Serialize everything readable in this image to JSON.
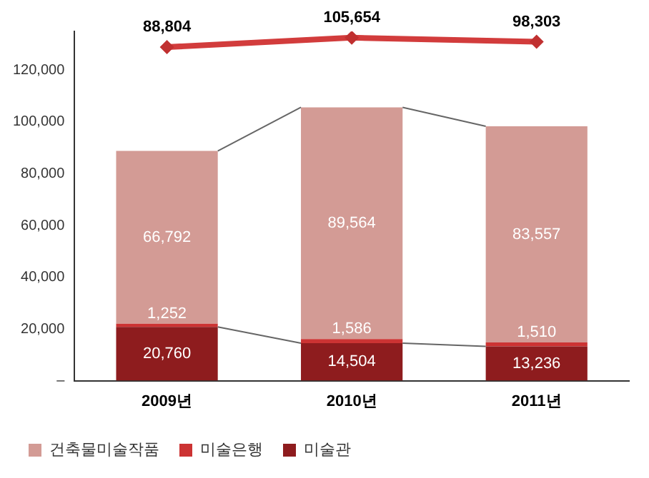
{
  "chart_data": {
    "type": "bar",
    "stacked": true,
    "categories": [
      "2009년",
      "2010년",
      "2011년"
    ],
    "series": [
      {
        "name": "미술관",
        "color": "#8e1c1e",
        "values": [
          20760,
          14504,
          13236
        ],
        "value_labels": [
          "20,760",
          "14,504",
          "13,236"
        ]
      },
      {
        "name": "미술은행",
        "color": "#cc3333",
        "values": [
          1252,
          1586,
          1510
        ],
        "value_labels": [
          "1,252",
          "1,586",
          "1,510"
        ]
      },
      {
        "name": "건축물미술작품",
        "color": "#d39b95",
        "values": [
          66792,
          89564,
          83557
        ],
        "value_labels": [
          "66,792",
          "89,564",
          "83,557"
        ]
      },
      {
        "type": "line",
        "axis": "y2",
        "color": "#d23c3c",
        "values": [
          88804,
          105654,
          98303
        ],
        "value_labels": [
          "88,804",
          "105,654",
          "98,303"
        ]
      }
    ],
    "ylim": [
      0,
      135000
    ],
    "yticks": [
      {
        "value": 0,
        "label": "–"
      },
      {
        "value": 20000,
        "label": "20,000"
      },
      {
        "value": 40000,
        "label": "40,000"
      },
      {
        "value": 60000,
        "label": "60,000"
      },
      {
        "value": 80000,
        "label": "80,000"
      },
      {
        "value": 100000,
        "label": "100,000"
      },
      {
        "value": 120000,
        "label": "120,000"
      }
    ],
    "y2lim": [
      -510000,
      117000
    ],
    "marker": "diamond",
    "grid": false,
    "legend": "bottom left"
  }
}
